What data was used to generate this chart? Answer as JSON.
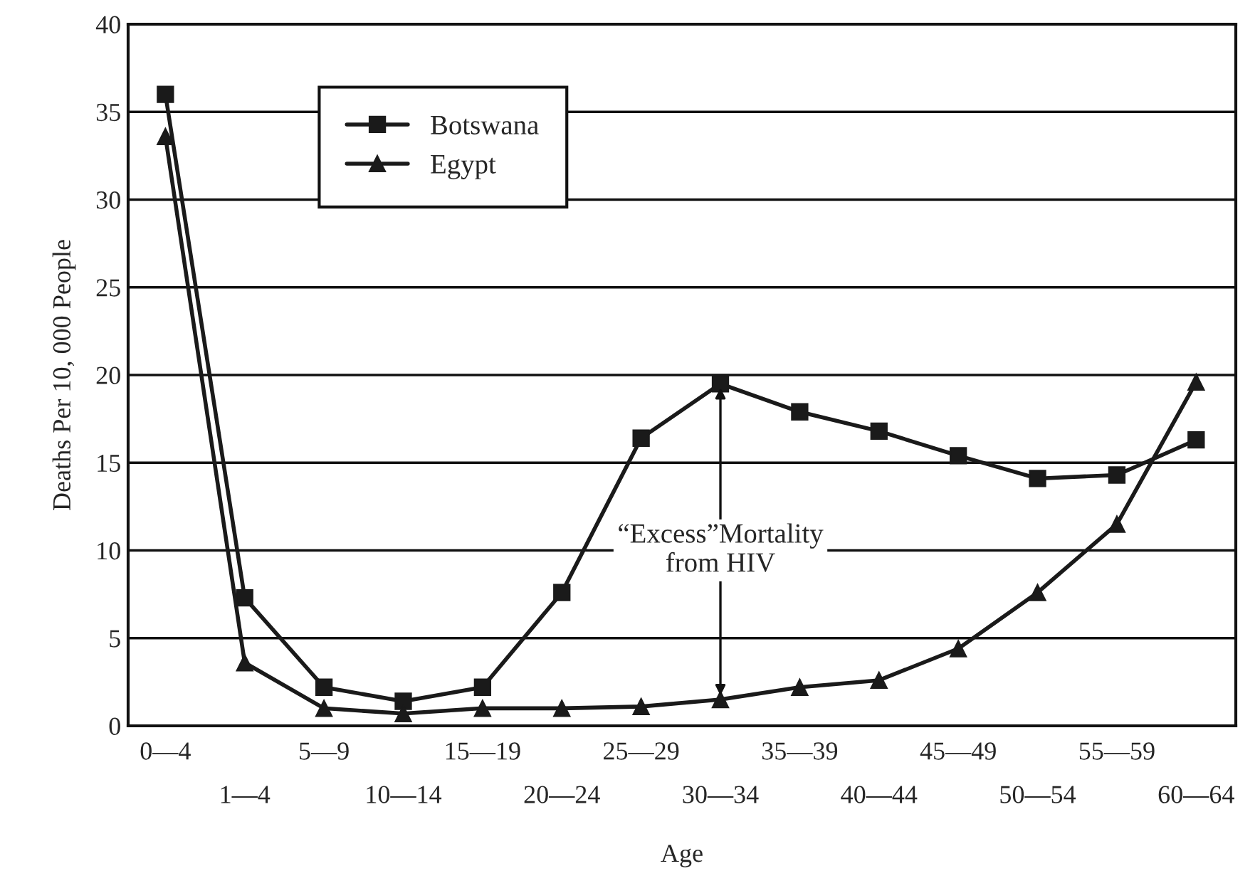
{
  "chart_data": {
    "type": "line",
    "xlabel": "Age",
    "ylabel": "Deaths Per 10, 000 People",
    "categories": [
      "0—4",
      "1—4",
      "5—9",
      "10—14",
      "15—19",
      "20—24",
      "25—29",
      "30—34",
      "35—39",
      "40—44",
      "45—49",
      "50—54",
      "55—59",
      "60—64"
    ],
    "series": [
      {
        "name": "Botswana",
        "color": "#1a1a1a",
        "marker": "square",
        "values": [
          36.0,
          7.3,
          2.2,
          1.4,
          2.2,
          7.6,
          16.4,
          19.5,
          17.9,
          16.8,
          15.4,
          14.1,
          14.3,
          16.3
        ]
      },
      {
        "name": "Egypt",
        "color": "#1a1a1a",
        "marker": "triangle",
        "values": [
          33.6,
          3.6,
          1.0,
          0.7,
          1.0,
          1.0,
          1.1,
          1.5,
          2.2,
          2.6,
          4.4,
          7.6,
          11.5,
          19.6
        ]
      }
    ],
    "ylim": [
      0,
      40
    ],
    "yticks": [
      0,
      5,
      10,
      15,
      20,
      25,
      30,
      35,
      40
    ],
    "grid": "y",
    "legend": "top left",
    "line_style": "solid",
    "annotations": [
      {
        "text": "“Excess”Mortality\nfrom HIV",
        "x": "30—34",
        "y": 19.5
      }
    ]
  }
}
